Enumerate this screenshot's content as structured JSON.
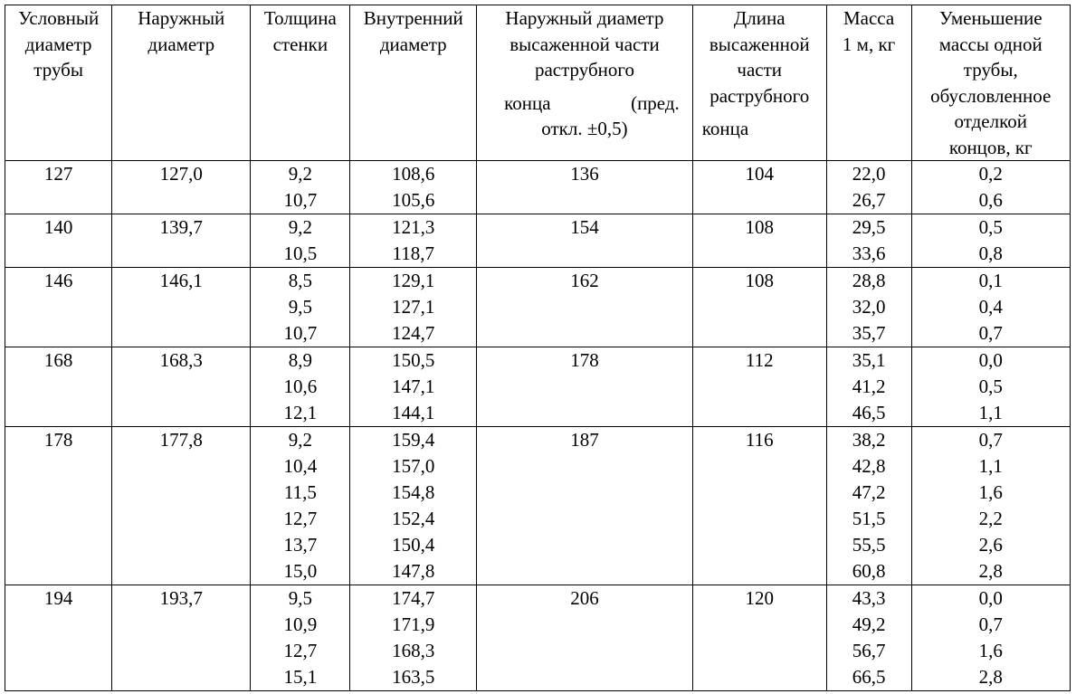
{
  "headers": {
    "nominal_diameter": [
      "Условный",
      "диаметр",
      "трубы"
    ],
    "outer_diameter": [
      "Наружный",
      "диаметр"
    ],
    "wall_thickness": [
      "Толщина",
      "стенки"
    ],
    "inner_diameter": [
      "Внутренний",
      "диаметр"
    ],
    "upset_outer_diameter": {
      "lines": [
        "Наружный диаметр",
        "высаженной части",
        "раструбного"
      ],
      "split_left": "конца",
      "split_right": "(пред.",
      "last": "откл. ±0,5)"
    },
    "upset_length": [
      "Длина",
      "высаженной",
      "части",
      "раструбного",
      "конца"
    ],
    "mass_per_meter": [
      "Масса",
      "1 м, кг"
    ],
    "mass_reduction": [
      "Уменьшение",
      "массы одной",
      "трубы,",
      "обусловленное",
      "отделкой",
      "концов, кг"
    ]
  },
  "groups": [
    {
      "nominal": "127",
      "outer": "127,0",
      "walls": [
        "9,2",
        "10,7"
      ],
      "inners": [
        "108,6",
        "105,6"
      ],
      "upset_od": "136",
      "upset_len": "104",
      "masses": [
        "22,0",
        "26,7"
      ],
      "reductions": [
        "0,2",
        "0,6"
      ]
    },
    {
      "nominal": "140",
      "outer": "139,7",
      "walls": [
        "9,2",
        "10,5"
      ],
      "inners": [
        "121,3",
        "118,7"
      ],
      "upset_od": "154",
      "upset_len": "108",
      "masses": [
        "29,5",
        "33,6"
      ],
      "reductions": [
        "0,5",
        "0,8"
      ]
    },
    {
      "nominal": "146",
      "outer": "146,1",
      "walls": [
        "8,5",
        "9,5",
        "10,7"
      ],
      "inners": [
        "129,1",
        "127,1",
        "124,7"
      ],
      "upset_od": "162",
      "upset_len": "108",
      "masses": [
        "28,8",
        "32,0",
        "35,7"
      ],
      "reductions": [
        "0,1",
        "0,4",
        "0,7"
      ]
    },
    {
      "nominal": "168",
      "outer": "168,3",
      "walls": [
        "8,9",
        "10,6",
        "12,1"
      ],
      "inners": [
        "150,5",
        "147,1",
        "144,1"
      ],
      "upset_od": "178",
      "upset_len": "112",
      "masses": [
        "35,1",
        "41,2",
        "46,5"
      ],
      "reductions": [
        "0,0",
        "0,5",
        "1,1"
      ]
    },
    {
      "nominal": "178",
      "outer": "177,8",
      "walls": [
        "9,2",
        "10,4",
        "11,5",
        "12,7",
        "13,7",
        "15,0"
      ],
      "inners": [
        "159,4",
        "157,0",
        "154,8",
        "152,4",
        "150,4",
        "147,8"
      ],
      "upset_od": "187",
      "upset_len": "116",
      "masses": [
        "38,2",
        "42,8",
        "47,2",
        "51,5",
        "55,5",
        "60,8"
      ],
      "reductions": [
        "0,7",
        "1,1",
        "1,6",
        "2,2",
        "2,6",
        "2,8"
      ]
    },
    {
      "nominal": "194",
      "outer": "193,7",
      "walls": [
        "9,5",
        "10,9",
        "12,7",
        "15,1"
      ],
      "inners": [
        "174,7",
        "171,9",
        "168,3",
        "163,5"
      ],
      "upset_od": "206",
      "upset_len": "120",
      "masses": [
        "43,3",
        "49,2",
        "56,7",
        "66,5"
      ],
      "reductions": [
        "0,0",
        "0,7",
        "1,6",
        "2,8"
      ]
    }
  ]
}
